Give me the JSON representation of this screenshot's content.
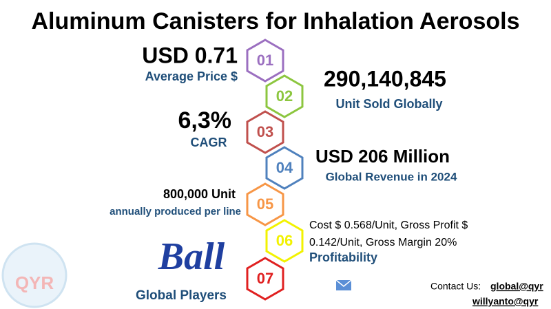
{
  "header": {
    "title": "Aluminum Canisters for Inhalation Aerosols"
  },
  "items": [
    {
      "number": "01",
      "color": "#9b6fc0",
      "value": "USD 0.71",
      "label": "Average Price $"
    },
    {
      "number": "02",
      "color": "#8cc63f",
      "value": "290,140,845",
      "label": "Unit Sold Globally"
    },
    {
      "number": "03",
      "color": "#c0504d",
      "value": "6,3%",
      "label": "CAGR"
    },
    {
      "number": "04",
      "color": "#4f81bd",
      "value": "USD 206 Million",
      "label": "Global Revenue in 2024"
    },
    {
      "number": "05",
      "color": "#f79646",
      "value": "800,000 Unit",
      "label": "annually produced per line"
    },
    {
      "number": "06",
      "color": "#f2f200",
      "lines": [
        "Cost $ 0.568/Unit, Gross Profit $",
        "0.142/Unit, Gross Margin 20%"
      ],
      "label": "Profitability"
    },
    {
      "number": "07",
      "color": "#e02020",
      "logo": "Ball",
      "label": "Global Players"
    }
  ],
  "watermark": "QYR",
  "contact": {
    "prefix": "Contact Us:",
    "emails": [
      "global@qyr",
      "willyanto@qyr"
    ]
  }
}
